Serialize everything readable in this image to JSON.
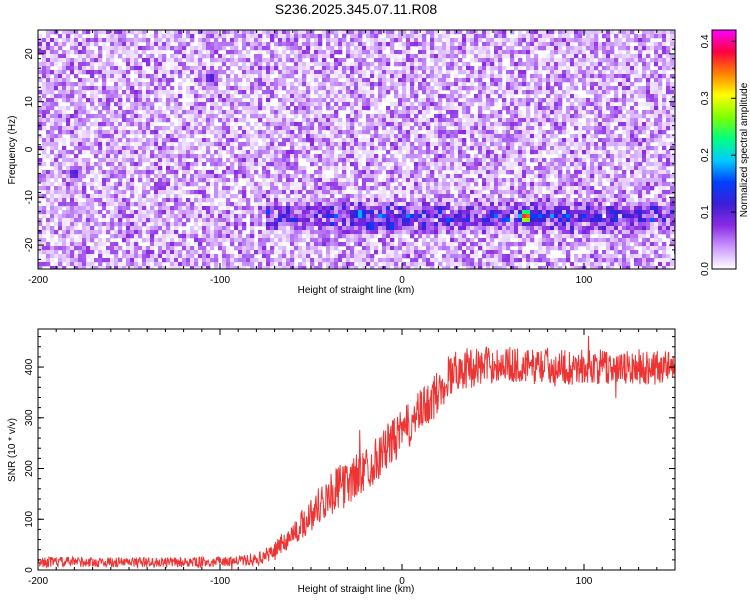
{
  "title": "S236.2025.345.07.11.R08",
  "chart_data": [
    {
      "type": "heatmap",
      "xlabel": "Height of straight line (km)",
      "ylabel": "Frequency (Hz)",
      "xlim": [
        -200,
        150
      ],
      "ylim": [
        -25,
        25
      ],
      "x_ticks": [
        -200,
        -100,
        0,
        100
      ],
      "x_tick_labels": [
        "-200",
        "-100",
        "0",
        "100"
      ],
      "y_ticks": [
        -20,
        -10,
        0,
        10,
        20
      ],
      "y_tick_labels": [
        "-20",
        "-10",
        "0",
        "10",
        "20"
      ],
      "colorbar": {
        "label": "Normalized spectral amplitude",
        "range": [
          0,
          0.42
        ],
        "ticks": [
          0.0,
          0.1,
          0.2,
          0.3,
          0.4
        ],
        "tick_labels": [
          "0.0",
          "0.1",
          "0.2",
          "0.3",
          "0.4"
        ],
        "colors": [
          "#ffffff",
          "#cc99ff",
          "#8a2be2",
          "#3a1fd6",
          "#0040ff",
          "#00ccff",
          "#00ff80",
          "#80ff00",
          "#ffff00",
          "#ff8000",
          "#ff0040",
          "#ff00ff"
        ]
      },
      "background_level": 0.035,
      "signal_band": {
        "frequency_hz": -14,
        "x_start_km": -75,
        "x_end_km": 150,
        "level": 0.09
      },
      "hot_spots": [
        {
          "x": -23,
          "y": -13.5,
          "value": 0.2
        },
        {
          "x": -17,
          "y": -16,
          "value": 0.17
        },
        {
          "x": -6,
          "y": -16,
          "value": 0.16
        },
        {
          "x": 2,
          "y": -15,
          "value": 0.14
        },
        {
          "x": 50,
          "y": -13.5,
          "value": 0.14
        },
        {
          "x": 68,
          "y": -14,
          "value": 0.4
        },
        {
          "x": 75,
          "y": -14,
          "value": 0.17
        },
        {
          "x": 130,
          "y": -13,
          "value": 0.13
        },
        {
          "x": -180,
          "y": -5,
          "value": 0.12
        },
        {
          "x": -105,
          "y": 15,
          "value": 0.12
        }
      ]
    },
    {
      "type": "line",
      "xlabel": "Height of straight line (km)",
      "ylabel": "SNR (10 * v/v)",
      "xlim": [
        -200,
        150
      ],
      "ylim": [
        0,
        475
      ],
      "x_ticks": [
        -200,
        -100,
        0,
        100
      ],
      "x_tick_labels": [
        "-200",
        "-100",
        "0",
        "100"
      ],
      "y_ticks": [
        0,
        100,
        200,
        300,
        400
      ],
      "y_tick_labels": [
        "0",
        "100",
        "200",
        "300",
        "400"
      ],
      "line_color": "#ee3333",
      "series": [
        {
          "x": [
            -200,
            -180,
            -160,
            -140,
            -120,
            -100,
            -90,
            -80,
            -75,
            -70,
            -65,
            -60,
            -55,
            -50,
            -45,
            -40,
            -35,
            -30,
            -25,
            -20,
            -15,
            -10,
            -5,
            0,
            5,
            10,
            15,
            20,
            25,
            30,
            40,
            50,
            60,
            70,
            80,
            90,
            100,
            110,
            120,
            130,
            140,
            150
          ],
          "values": [
            15,
            16,
            15,
            15,
            15,
            16,
            18,
            20,
            28,
            40,
            55,
            70,
            90,
            110,
            130,
            150,
            160,
            170,
            185,
            200,
            215,
            235,
            255,
            270,
            290,
            310,
            330,
            350,
            380,
            395,
            400,
            405,
            405,
            400,
            405,
            400,
            400,
            400,
            395,
            400,
            400,
            400
          ],
          "noise": [
            10,
            10,
            10,
            10,
            10,
            10,
            10,
            12,
            15,
            18,
            20,
            25,
            30,
            35,
            40,
            45,
            45,
            45,
            45,
            45,
            45,
            45,
            45,
            45,
            45,
            45,
            45,
            45,
            45,
            40,
            40,
            35,
            35,
            35,
            35,
            35,
            35,
            35,
            35,
            35,
            35,
            35
          ]
        }
      ]
    }
  ]
}
